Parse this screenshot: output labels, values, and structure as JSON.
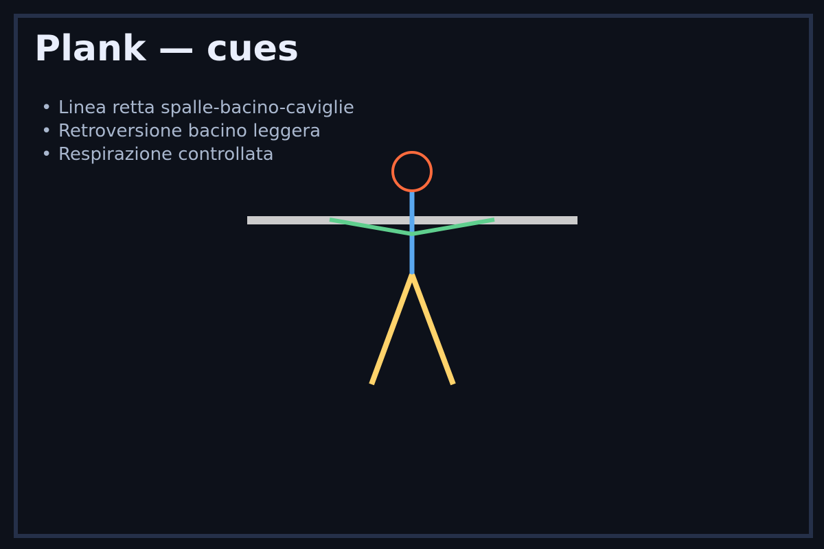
{
  "title": "Plank — cues",
  "cues": [
    "Linea retta spalle-bacino-caviglie",
    "Retroversione bacino leggera",
    "Respirazione controllata"
  ],
  "bullet": "•",
  "colors": {
    "background": "#0d111a",
    "border": "#253049",
    "title": "#e9eefc",
    "cue_text": "#a9b7ce",
    "head": "#ff6b3d",
    "spine": "#5aa8f0",
    "arms": "#5fcf8e",
    "legs": "#ffd36b",
    "ground": "#cccccc"
  },
  "figure": {
    "parts": [
      "head",
      "spine",
      "arms",
      "legs",
      "ground-bar"
    ]
  }
}
